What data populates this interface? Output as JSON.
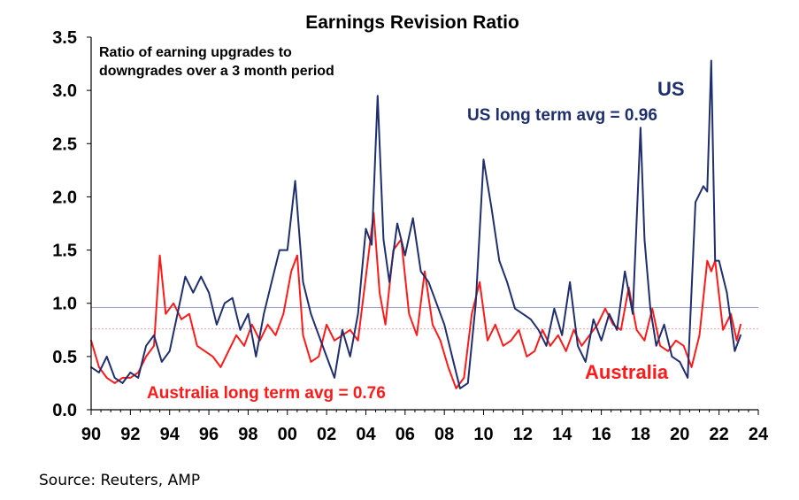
{
  "chart_data": {
    "type": "line",
    "title": "Earnings Revision Ratio",
    "subtitle_lines": [
      "Ratio of earning upgrades to",
      "downgrades over a 3 month period"
    ],
    "xlabel": "",
    "ylabel": "",
    "xlim": [
      1990,
      2024
    ],
    "ylim": [
      0,
      3.5
    ],
    "x_ticks": [
      1990,
      1992,
      1994,
      1996,
      1998,
      2000,
      2002,
      2004,
      2006,
      2008,
      2010,
      2012,
      2014,
      2016,
      2018,
      2020,
      2022,
      2024
    ],
    "x_tick_labels": [
      "90",
      "92",
      "94",
      "96",
      "98",
      "00",
      "02",
      "04",
      "06",
      "08",
      "10",
      "12",
      "14",
      "16",
      "18",
      "20",
      "22",
      "24"
    ],
    "y_ticks": [
      0,
      0.5,
      1.0,
      1.5,
      2.0,
      2.5,
      3.0,
      3.5
    ],
    "y_tick_labels": [
      "0.0",
      "0.5",
      "1.0",
      "1.5",
      "2.0",
      "2.5",
      "3.0",
      "3.5"
    ],
    "grid": false,
    "series": [
      {
        "name": "US",
        "color": "#1f2f6e",
        "label": "US",
        "x": [
          1990.0,
          1990.4,
          1990.8,
          1991.2,
          1991.6,
          1992.0,
          1992.4,
          1992.8,
          1993.2,
          1993.6,
          1994.0,
          1994.4,
          1994.8,
          1995.2,
          1995.6,
          1996.0,
          1996.4,
          1996.8,
          1997.2,
          1997.6,
          1998.0,
          1998.4,
          1998.8,
          1999.2,
          1999.6,
          2000.0,
          2000.4,
          2000.8,
          2001.2,
          2001.6,
          2002.0,
          2002.4,
          2002.8,
          2003.2,
          2003.6,
          2004.0,
          2004.3,
          2004.6,
          2004.9,
          2005.2,
          2005.6,
          2006.0,
          2006.4,
          2006.8,
          2007.2,
          2007.6,
          2008.0,
          2008.4,
          2008.8,
          2009.2,
          2009.6,
          2010.0,
          2010.4,
          2010.8,
          2011.2,
          2011.6,
          2012.0,
          2012.4,
          2012.8,
          2013.2,
          2013.6,
          2014.0,
          2014.4,
          2014.8,
          2015.2,
          2015.6,
          2016.0,
          2016.4,
          2016.8,
          2017.2,
          2017.6,
          2018.0,
          2018.2,
          2018.5,
          2018.8,
          2019.2,
          2019.6,
          2020.0,
          2020.4,
          2020.8,
          2021.2,
          2021.4,
          2021.6,
          2021.8,
          2022.0,
          2022.4,
          2022.8,
          2023.1
        ],
        "values": [
          0.4,
          0.35,
          0.5,
          0.3,
          0.25,
          0.35,
          0.3,
          0.6,
          0.7,
          0.45,
          0.55,
          0.9,
          1.25,
          1.1,
          1.25,
          1.1,
          0.8,
          1.0,
          1.05,
          0.75,
          0.9,
          0.5,
          0.9,
          1.2,
          1.5,
          1.5,
          2.15,
          1.2,
          0.9,
          0.7,
          0.5,
          0.3,
          0.75,
          0.5,
          0.9,
          1.7,
          1.55,
          2.95,
          1.6,
          1.2,
          1.75,
          1.45,
          1.8,
          1.3,
          1.2,
          1.0,
          0.8,
          0.5,
          0.2,
          0.25,
          1.0,
          2.35,
          1.9,
          1.4,
          1.2,
          0.95,
          0.9,
          0.85,
          0.75,
          0.6,
          0.95,
          0.7,
          1.2,
          0.6,
          0.45,
          0.85,
          0.65,
          0.9,
          0.75,
          1.3,
          0.9,
          2.65,
          1.6,
          0.95,
          0.6,
          0.8,
          0.5,
          0.45,
          0.3,
          1.95,
          2.1,
          2.05,
          3.28,
          1.4,
          1.4,
          1.1,
          0.55,
          0.7
        ]
      },
      {
        "name": "Australia",
        "color": "#ff1a1a",
        "label": "Australia",
        "x": [
          1990.0,
          1990.4,
          1990.8,
          1991.2,
          1991.6,
          1992.0,
          1992.4,
          1992.8,
          1993.2,
          1993.5,
          1993.8,
          1994.2,
          1994.6,
          1995.0,
          1995.4,
          1995.8,
          1996.2,
          1996.6,
          1997.0,
          1997.4,
          1997.8,
          1998.2,
          1998.6,
          1999.0,
          1999.4,
          1999.8,
          2000.2,
          2000.5,
          2000.8,
          2001.2,
          2001.6,
          2002.0,
          2002.4,
          2002.8,
          2003.2,
          2003.6,
          2004.0,
          2004.4,
          2004.7,
          2005.0,
          2005.4,
          2005.8,
          2006.2,
          2006.6,
          2007.0,
          2007.4,
          2007.8,
          2008.2,
          2008.6,
          2009.0,
          2009.4,
          2009.8,
          2010.2,
          2010.6,
          2011.0,
          2011.4,
          2011.8,
          2012.2,
          2012.6,
          2013.0,
          2013.4,
          2013.8,
          2014.2,
          2014.6,
          2015.0,
          2015.4,
          2015.8,
          2016.2,
          2016.6,
          2017.0,
          2017.4,
          2017.8,
          2018.2,
          2018.6,
          2019.0,
          2019.4,
          2019.8,
          2020.2,
          2020.6,
          2021.0,
          2021.4,
          2021.6,
          2021.8,
          2022.2,
          2022.6,
          2022.9,
          2023.1
        ],
        "values": [
          0.65,
          0.4,
          0.3,
          0.25,
          0.3,
          0.3,
          0.35,
          0.5,
          0.6,
          1.45,
          0.9,
          1.0,
          0.85,
          0.9,
          0.6,
          0.55,
          0.5,
          0.4,
          0.55,
          0.7,
          0.6,
          0.8,
          0.65,
          0.8,
          0.7,
          0.9,
          1.3,
          1.45,
          0.7,
          0.45,
          0.5,
          0.8,
          0.65,
          0.7,
          0.75,
          0.65,
          1.25,
          1.85,
          1.1,
          0.8,
          1.5,
          1.6,
          0.9,
          0.7,
          1.3,
          0.8,
          0.65,
          0.4,
          0.2,
          0.3,
          0.9,
          1.2,
          0.65,
          0.8,
          0.6,
          0.65,
          0.75,
          0.5,
          0.55,
          0.75,
          0.6,
          0.7,
          0.55,
          0.75,
          0.6,
          0.7,
          0.8,
          0.95,
          0.8,
          0.75,
          1.15,
          0.75,
          0.65,
          0.95,
          0.6,
          0.55,
          0.65,
          0.6,
          0.4,
          0.7,
          1.4,
          1.3,
          1.4,
          0.75,
          0.9,
          0.65,
          0.8
        ]
      }
    ],
    "reference_lines": [
      {
        "name": "US long term avg",
        "value": 0.96,
        "color": "#9aa6c8"
      },
      {
        "name": "Australia long term avg",
        "value": 0.76,
        "color": "#ff9a9a"
      }
    ],
    "annotations": [
      {
        "id": "us-label",
        "text": "US",
        "color": "#1f2f6e"
      },
      {
        "id": "us-avg",
        "text": "US long term avg = 0.96",
        "color": "#1f2f6e"
      },
      {
        "id": "aus-label",
        "text": "Australia",
        "color": "#ff1a1a"
      },
      {
        "id": "aus-avg",
        "text": "Australia long term avg = 0.76",
        "color": "#ff1a1a"
      }
    ]
  },
  "source": "Source: Reuters, AMP"
}
